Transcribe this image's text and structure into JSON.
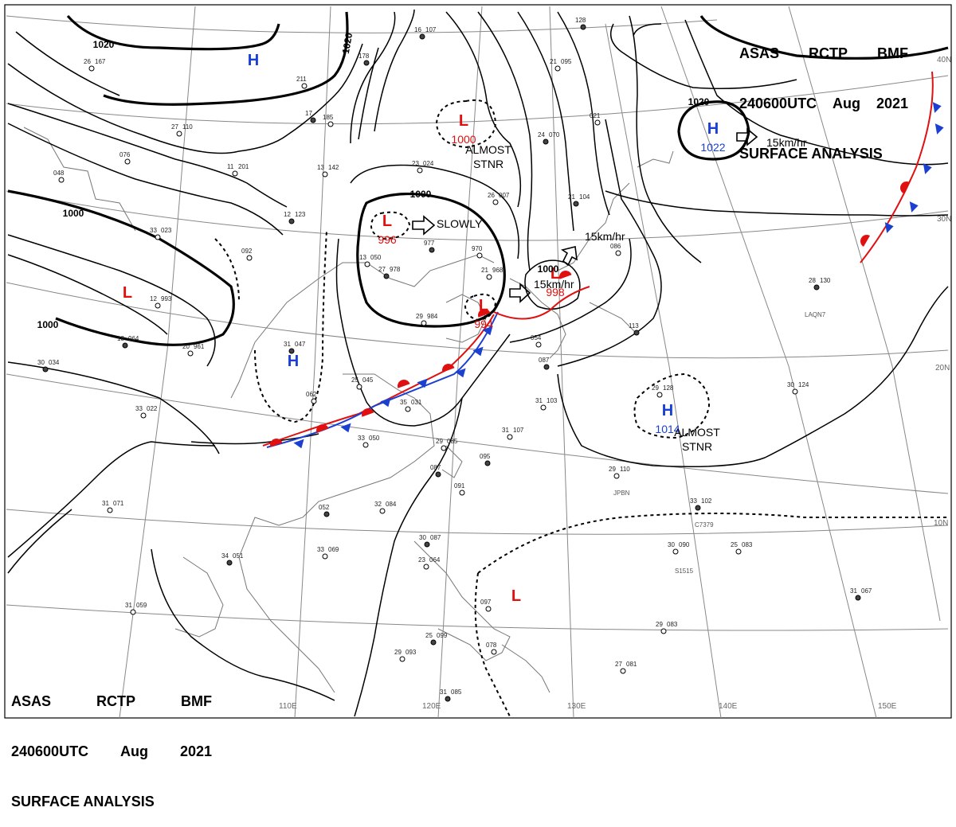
{
  "header": {
    "line1": [
      "ASAS",
      "RCTP",
      "BMF"
    ],
    "line2": [
      "240600UTC",
      "Aug",
      "2021"
    ],
    "line3": "SURFACE ANALYSIS"
  },
  "pressure_centers": [
    {
      "type": "H",
      "value": ""
    },
    {
      "type": "H",
      "value": "1022"
    },
    {
      "type": "L",
      "value": "1000"
    },
    {
      "type": "L",
      "value": "996"
    },
    {
      "type": "L",
      "value": ""
    },
    {
      "type": "L",
      "value": "994"
    },
    {
      "type": "L",
      "value": "998"
    },
    {
      "type": "H",
      "value": ""
    },
    {
      "type": "H",
      "value": "1014"
    },
    {
      "type": "L",
      "value": ""
    }
  ],
  "isobar_labels": [
    "1020",
    "1020",
    "1000",
    "1000",
    "1000",
    "1020",
    "1000"
  ],
  "motion_labels": [
    "SLOWLY",
    "15km/hr",
    "15km/hr",
    "15km/hr"
  ],
  "stationary_labels": [
    [
      "ALMOST",
      "STNR"
    ],
    [
      "ALMOST",
      "STNR"
    ]
  ],
  "lon_labels": [
    "110E",
    "120E",
    "130E",
    "140E",
    "150E"
  ],
  "lat_labels": [
    "40N",
    "30N",
    "20N",
    "10N"
  ],
  "buoy_labels": [
    "LAQN7",
    "JPBN",
    "C7379",
    "S1515"
  ],
  "station_obs": [
    [
      "16",
      "107"
    ],
    [
      "26",
      "167"
    ],
    [
      "211",
      ""
    ],
    [
      "178",
      ""
    ],
    [
      "27",
      "110"
    ],
    [
      "185",
      ""
    ],
    [
      "17",
      ""
    ],
    [
      "11",
      "201"
    ],
    [
      "13",
      "142"
    ],
    [
      "12",
      "123"
    ],
    [
      "076",
      ""
    ],
    [
      "048",
      ""
    ],
    [
      "24",
      "070"
    ],
    [
      "21",
      "095"
    ],
    [
      "021",
      ""
    ],
    [
      "128",
      ""
    ],
    [
      "23",
      "024"
    ],
    [
      "26",
      "007"
    ],
    [
      "21",
      "104"
    ],
    [
      "33",
      "023"
    ],
    [
      "092",
      ""
    ],
    [
      "977",
      ""
    ],
    [
      "970",
      ""
    ],
    [
      "13",
      "050"
    ],
    [
      "27",
      "978"
    ],
    [
      "21",
      "968"
    ],
    [
      "12",
      "993"
    ],
    [
      "18",
      "964"
    ],
    [
      "20",
      "961"
    ],
    [
      "29",
      "984"
    ],
    [
      "31",
      "047"
    ],
    [
      "25",
      "045"
    ],
    [
      "35",
      "031"
    ],
    [
      "30",
      "034"
    ],
    [
      "33",
      "022"
    ],
    [
      "33",
      "050"
    ],
    [
      "052",
      ""
    ],
    [
      "32",
      "084"
    ],
    [
      "29",
      "085"
    ],
    [
      "087",
      ""
    ],
    [
      "31",
      "107"
    ],
    [
      "31",
      "103"
    ],
    [
      "095",
      ""
    ],
    [
      "091",
      ""
    ],
    [
      "29",
      "110"
    ],
    [
      "28",
      "130"
    ],
    [
      "30",
      "124"
    ],
    [
      "29",
      "128"
    ],
    [
      "33",
      "102"
    ],
    [
      "30",
      "090"
    ],
    [
      "25",
      "083"
    ],
    [
      "31",
      "067"
    ],
    [
      "29",
      "083"
    ],
    [
      "31",
      "071"
    ],
    [
      "34",
      "051"
    ],
    [
      "33",
      "069"
    ],
    [
      "31",
      "059"
    ],
    [
      "30",
      "087"
    ],
    [
      "23",
      "064"
    ],
    [
      "097",
      ""
    ],
    [
      "25",
      "099"
    ],
    [
      "078",
      ""
    ],
    [
      "29",
      "093"
    ],
    [
      "31",
      "085"
    ],
    [
      "27",
      "081"
    ],
    [
      "062",
      ""
    ],
    [
      "113",
      ""
    ],
    [
      "086",
      ""
    ],
    [
      "054",
      ""
    ],
    [
      "087",
      ""
    ]
  ],
  "colors": {
    "isobar": "#000000",
    "high_label": "#1a3fd1",
    "low_label": "#e01010",
    "warm_front": "#e01010",
    "cold_front": "#1a3fd1",
    "coast": "#777777",
    "grid": "#888888"
  }
}
